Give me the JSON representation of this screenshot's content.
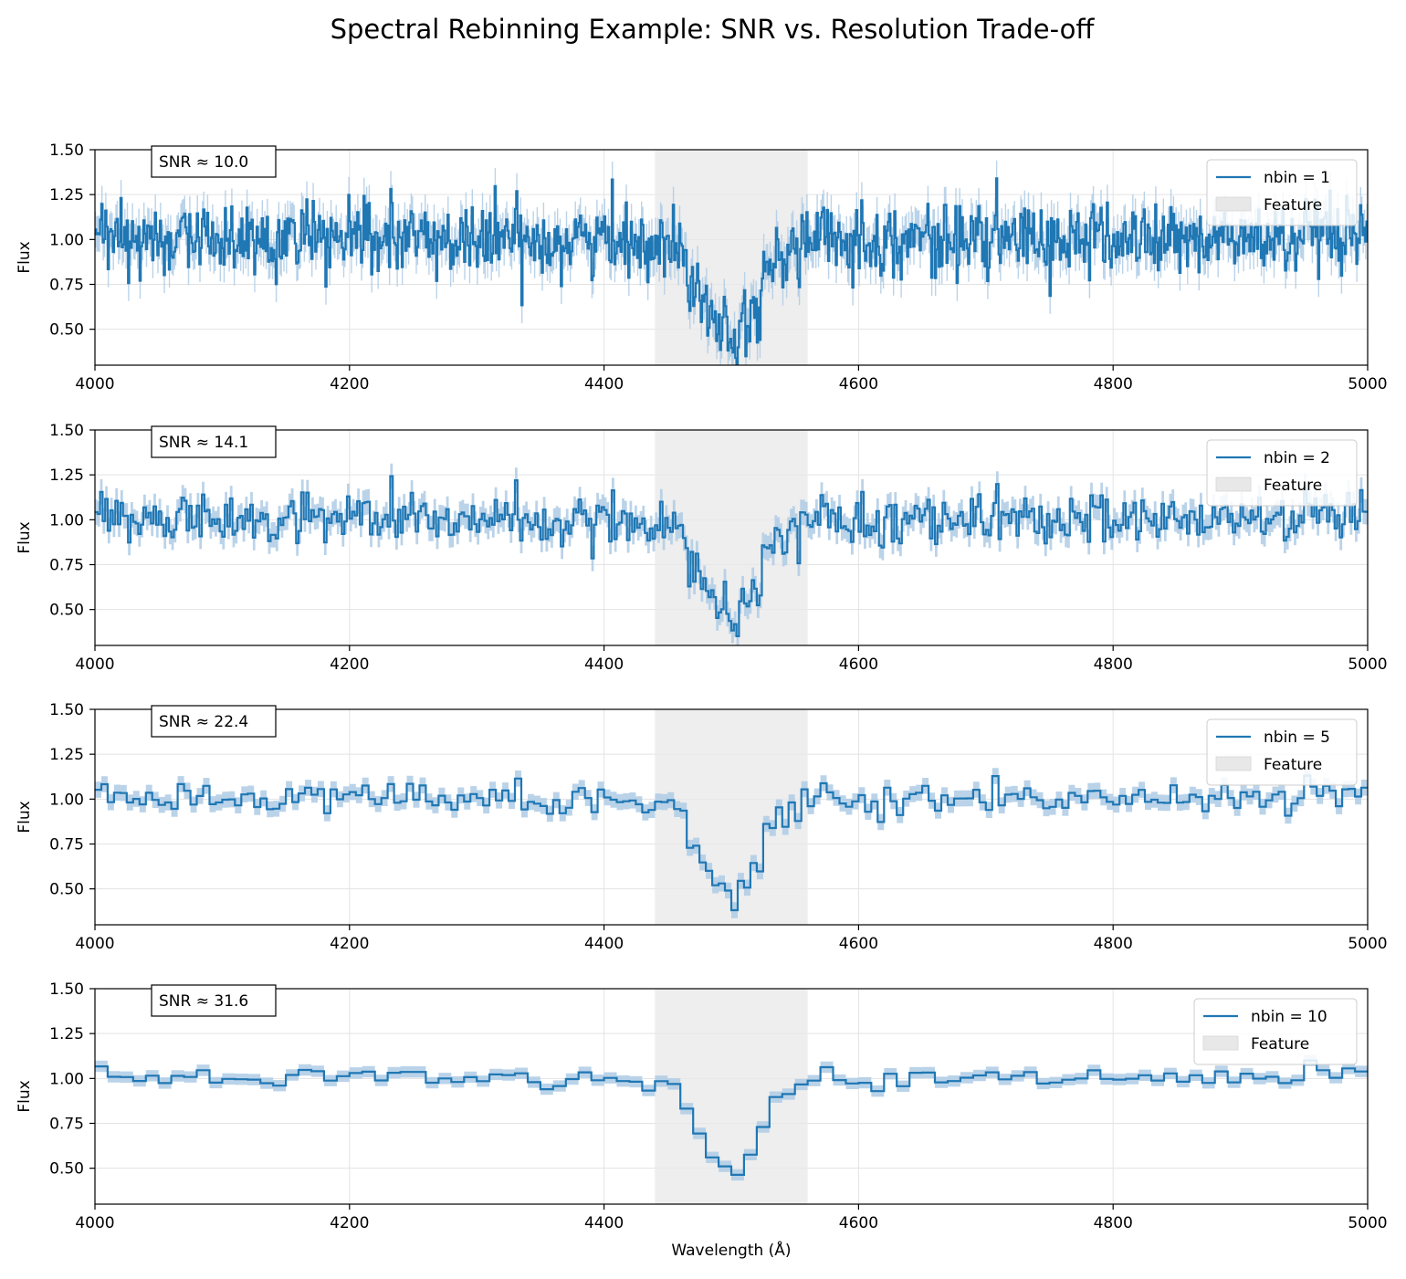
{
  "figure": {
    "title": "Spectral Rebinning Example: SNR vs. Resolution Trade-off"
  },
  "chart_data": [
    {
      "type": "line",
      "style": "step",
      "nbin": 1,
      "snr_label": "SNR ≈ 10.0",
      "legend": {
        "line_label": "nbin = 1",
        "band_label": "Feature",
        "placement": "upper-right"
      },
      "ylabel": "Flux",
      "xlabel": "",
      "xlim": [
        4000,
        5000
      ],
      "ylim": [
        0.3,
        1.5
      ],
      "xticks": [
        4000,
        4200,
        4400,
        4600,
        4800,
        5000
      ],
      "yticks": [
        0.5,
        0.75,
        1.0,
        1.25,
        1.5
      ],
      "ytick_labels": [
        "0.50",
        "0.75",
        "1.00",
        "1.25",
        "1.50"
      ],
      "grid": true,
      "feature_band": [
        4440,
        4560
      ],
      "series": {
        "x_start": 4000,
        "x_step": 1,
        "noise_sigma": 0.1
      }
    },
    {
      "type": "line",
      "style": "step",
      "nbin": 2,
      "snr_label": "SNR ≈ 14.1",
      "legend": {
        "line_label": "nbin = 2",
        "band_label": "Feature",
        "placement": "upper-right"
      },
      "ylabel": "Flux",
      "xlabel": "",
      "xlim": [
        4000,
        5000
      ],
      "ylim": [
        0.3,
        1.5
      ],
      "xticks": [
        4000,
        4200,
        4400,
        4600,
        4800,
        5000
      ],
      "yticks": [
        0.5,
        0.75,
        1.0,
        1.25,
        1.5
      ],
      "ytick_labels": [
        "0.50",
        "0.75",
        "1.00",
        "1.25",
        "1.50"
      ],
      "grid": true,
      "feature_band": [
        4440,
        4560
      ],
      "series": {
        "x_start": 4000,
        "x_step": 2,
        "noise_sigma": 0.0707
      }
    },
    {
      "type": "line",
      "style": "step",
      "nbin": 5,
      "snr_label": "SNR ≈ 22.4",
      "legend": {
        "line_label": "nbin = 5",
        "band_label": "Feature",
        "placement": "upper-right"
      },
      "ylabel": "Flux",
      "xlabel": "",
      "xlim": [
        4000,
        5000
      ],
      "ylim": [
        0.3,
        1.5
      ],
      "xticks": [
        4000,
        4200,
        4400,
        4600,
        4800,
        5000
      ],
      "yticks": [
        0.5,
        0.75,
        1.0,
        1.25,
        1.5
      ],
      "ytick_labels": [
        "0.50",
        "0.75",
        "1.00",
        "1.25",
        "1.50"
      ],
      "grid": true,
      "feature_band": [
        4440,
        4560
      ],
      "series": {
        "x_start": 4000,
        "x_step": 5,
        "noise_sigma": 0.0447
      }
    },
    {
      "type": "line",
      "style": "step",
      "nbin": 10,
      "snr_label": "SNR ≈ 31.6",
      "legend": {
        "line_label": "nbin = 10",
        "band_label": "Feature",
        "placement": "upper-right"
      },
      "ylabel": "Flux",
      "xlabel": "Wavelength (Å)",
      "xlim": [
        4000,
        5000
      ],
      "ylim": [
        0.3,
        1.5
      ],
      "xticks": [
        4000,
        4200,
        4400,
        4600,
        4800,
        5000
      ],
      "yticks": [
        0.5,
        0.75,
        1.0,
        1.25,
        1.5
      ],
      "ytick_labels": [
        "0.50",
        "0.75",
        "1.00",
        "1.25",
        "1.50"
      ],
      "grid": true,
      "feature_band": [
        4440,
        4560
      ],
      "series": {
        "x_start": 4000,
        "x_step": 10,
        "noise_sigma": 0.0316
      }
    }
  ],
  "colors": {
    "line": "#1f77b4",
    "error_band": "#aecbe5",
    "feature_band": "#e8e8e8",
    "grid": "#e3e3e3",
    "axes": "#000000"
  }
}
